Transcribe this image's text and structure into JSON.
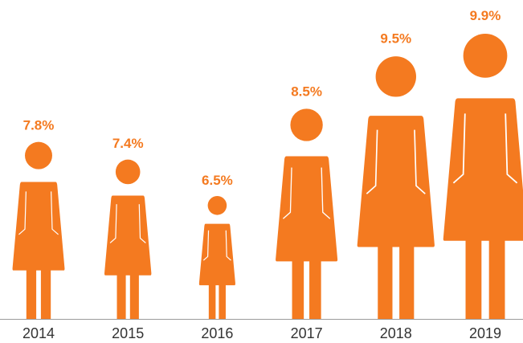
{
  "chart_data": {
    "type": "pictogram",
    "categories": [
      "2014",
      "2015",
      "2016",
      "2017",
      "2018",
      "2019"
    ],
    "values": [
      7.8,
      7.4,
      6.5,
      8.5,
      9.5,
      9.9
    ],
    "value_labels": [
      "7.8%",
      "7.4%",
      "6.5%",
      "8.5%",
      "9.5%",
      "9.9%"
    ],
    "color": "#f47a20"
  }
}
